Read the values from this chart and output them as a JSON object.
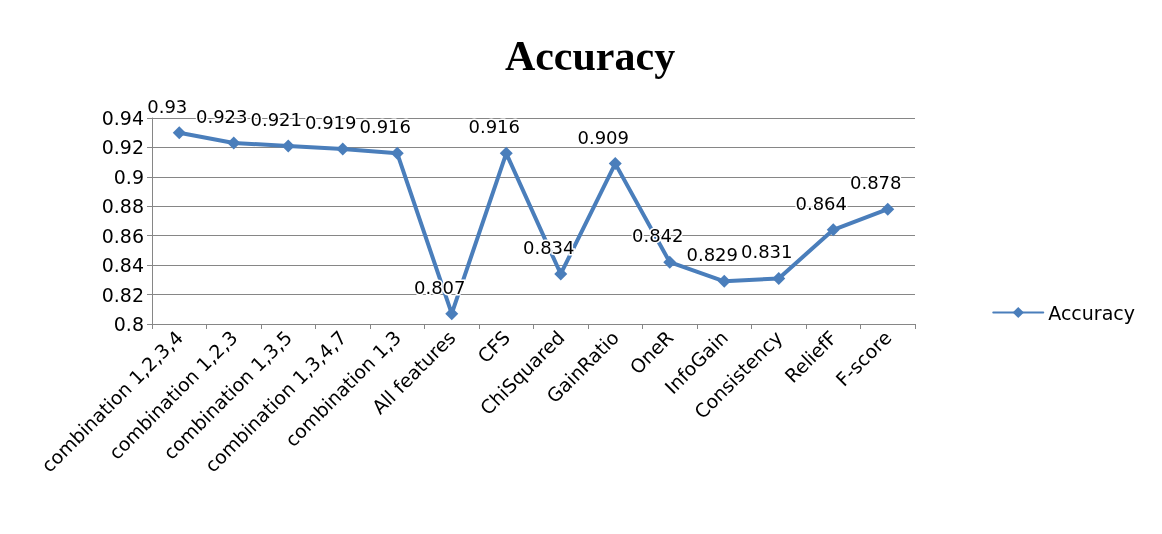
{
  "chart_data": {
    "type": "line",
    "title": "Accuracy",
    "categories": [
      "combination 1,2,3,4",
      "combination 1,2,3",
      "combination 1,3,5",
      "combination 1,3,4,7",
      "combination 1,3",
      "All features",
      "CFS",
      "ChiSquared",
      "GainRatio",
      "OneR",
      "InfoGain",
      "Consistency",
      "ReliefF",
      "F-score"
    ],
    "series": [
      {
        "name": "Accuracy",
        "color": "#4a7ebb",
        "values": [
          0.93,
          0.923,
          0.921,
          0.919,
          0.916,
          0.807,
          0.916,
          0.834,
          0.909,
          0.842,
          0.829,
          0.831,
          0.864,
          0.878
        ]
      }
    ],
    "ylim": [
      0.8,
      0.94
    ],
    "yticks": [
      0.8,
      0.82,
      0.84,
      0.86,
      0.88,
      0.9,
      0.92,
      0.94
    ],
    "grid": "y",
    "legend": "right",
    "marker": "diamond",
    "line_style": "solid",
    "data_labels": true
  }
}
